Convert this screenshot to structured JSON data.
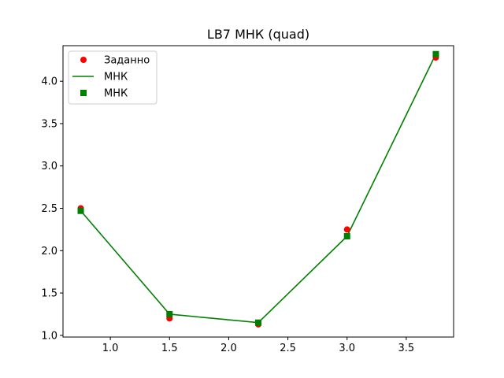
{
  "chart_data": {
    "type": "line",
    "title": "LB7 МНК (quad)",
    "xlabel": "",
    "ylabel": "",
    "xlim": [
      0.6,
      3.9
    ],
    "ylim": [
      0.98,
      4.42
    ],
    "xticks": [
      1.0,
      1.5,
      2.0,
      2.5,
      3.0,
      3.5
    ],
    "xtick_labels": [
      "1.0",
      "1.5",
      "2.0",
      "2.5",
      "3.0",
      "3.5"
    ],
    "yticks": [
      1.0,
      1.5,
      2.0,
      2.5,
      3.0,
      3.5,
      4.0
    ],
    "ytick_labels": [
      "1.0",
      "1.5",
      "2.0",
      "2.5",
      "3.0",
      "3.5",
      "4.0"
    ],
    "grid": false,
    "legend_position": "top-left",
    "series": [
      {
        "name": "Заданно",
        "kind": "scatter",
        "marker": "circle",
        "color": "#ff0000",
        "x": [
          0.75,
          1.5,
          2.25,
          3.0,
          3.75
        ],
        "y": [
          2.5,
          1.2,
          1.13,
          2.25,
          4.28
        ]
      },
      {
        "name": "МНК",
        "kind": "line",
        "color": "#008000",
        "x": [
          0.75,
          1.5,
          2.25,
          3.0,
          3.75
        ],
        "y": [
          2.47,
          1.25,
          1.15,
          2.17,
          4.32
        ]
      },
      {
        "name": "МНК",
        "kind": "scatter",
        "marker": "square",
        "color": "#008000",
        "x": [
          0.75,
          1.5,
          2.25,
          3.0,
          3.75
        ],
        "y": [
          2.47,
          1.25,
          1.15,
          2.17,
          4.32
        ]
      }
    ]
  }
}
